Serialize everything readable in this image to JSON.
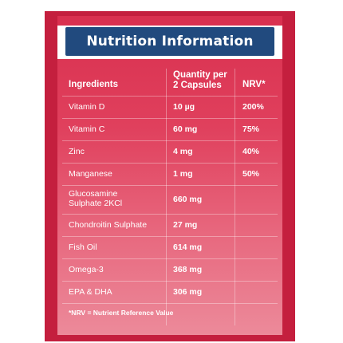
{
  "title": "Nutrition Information",
  "columns": {
    "ingredients": "Ingredients",
    "quantity_line1": "Quantity per",
    "quantity_line2": "2 Capsules",
    "nrv": "NRV*"
  },
  "rows": [
    {
      "name": "Vitamin D",
      "qty": "10 µg",
      "nrv": "200%"
    },
    {
      "name": "Vitamin C",
      "qty": "60 mg",
      "nrv": "75%"
    },
    {
      "name": "Zinc",
      "qty": "4 mg",
      "nrv": "40%"
    },
    {
      "name": "Manganese",
      "qty": "1 mg",
      "nrv": "50%"
    },
    {
      "name_line1": "Glucosamine",
      "name_line2": "Sulphate 2KCl",
      "qty": "660 mg",
      "nrv": ""
    },
    {
      "name": "Chondroitin Sulphate",
      "qty": "27 mg",
      "nrv": ""
    },
    {
      "name": "Fish Oil",
      "qty": "614 mg",
      "nrv": ""
    },
    {
      "name": "Omega-3",
      "qty": "368 mg",
      "nrv": ""
    },
    {
      "name": "EPA & DHA",
      "qty": "306 mg",
      "nrv": ""
    }
  ],
  "footnote": "*NRV = Nutrient Reference Value",
  "colors": {
    "header_bg": "#214a7e",
    "card_red": "#d9304f",
    "text": "#ffffff"
  }
}
